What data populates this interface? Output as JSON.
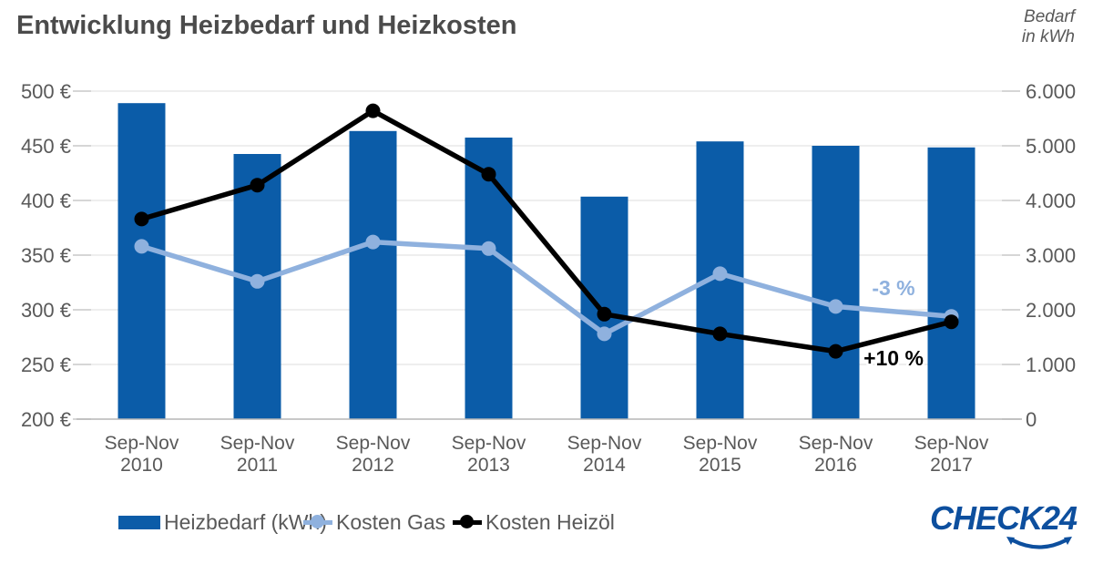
{
  "title": "Entwicklung Heizbedarf und Heizkosten",
  "axis_note": {
    "line1": "Bedarf",
    "line2": "in kWh"
  },
  "chart_data": {
    "type": "combo",
    "title": "Entwicklung Heizbedarf und Heizkosten",
    "grid": true,
    "legend_position": "bottom",
    "categories": [
      {
        "line1": "Sep-Nov",
        "line2": "2010"
      },
      {
        "line1": "Sep-Nov",
        "line2": "2011"
      },
      {
        "line1": "Sep-Nov",
        "line2": "2012"
      },
      {
        "line1": "Sep-Nov",
        "line2": "2013"
      },
      {
        "line1": "Sep-Nov",
        "line2": "2014"
      },
      {
        "line1": "Sep-Nov",
        "line2": "2015"
      },
      {
        "line1": "Sep-Nov",
        "line2": "2016"
      },
      {
        "line1": "Sep-Nov",
        "line2": "2017"
      }
    ],
    "left_axis": {
      "unit": "EUR",
      "min": 200,
      "max": 500,
      "ticks": [
        {
          "value": 500,
          "label": "500 €"
        },
        {
          "value": 450,
          "label": "450 €"
        },
        {
          "value": 400,
          "label": "400 €"
        },
        {
          "value": 350,
          "label": "350 €"
        },
        {
          "value": 300,
          "label": "300 €"
        },
        {
          "value": 250,
          "label": "250 €"
        },
        {
          "value": 200,
          "label": "200 €"
        }
      ]
    },
    "right_axis": {
      "title": "Bedarf in kWh",
      "min": 0,
      "max": 6000,
      "ticks": [
        {
          "value": 6000,
          "label": "6.000"
        },
        {
          "value": 5000,
          "label": "5.000"
        },
        {
          "value": 4000,
          "label": "4.000"
        },
        {
          "value": 3000,
          "label": "3.000"
        },
        {
          "value": 2000,
          "label": "2.000"
        },
        {
          "value": 1000,
          "label": "1.000"
        },
        {
          "value": 0,
          "label": "0"
        }
      ]
    },
    "series": [
      {
        "name": "Heizbedarf (kWh)",
        "type": "bar",
        "axis": "right",
        "color": "#0b5ca8",
        "values": [
          5780,
          4850,
          5270,
          5150,
          4070,
          5080,
          5000,
          4970
        ]
      },
      {
        "name": "Kosten Gas",
        "type": "line",
        "axis": "left",
        "color": "#8fb1de",
        "values": [
          358,
          326,
          362,
          356,
          278,
          333,
          303,
          294
        ]
      },
      {
        "name": "Kosten Heizöl",
        "type": "line",
        "axis": "left",
        "color": "#000000",
        "values": [
          383,
          414,
          482,
          424,
          296,
          278,
          262,
          289
        ]
      }
    ],
    "annotations": [
      {
        "text": "-3 %",
        "x": 981,
        "y": 324,
        "color": "#8fb1de"
      },
      {
        "text": "+10 %",
        "x": 981,
        "y": 401,
        "color": "#000000"
      }
    ],
    "style": {
      "grid_color": "#dcdcdc",
      "tick_color": "#c9c9c9",
      "axis_color": "#b5b5b5",
      "text_color": "#595959"
    }
  },
  "logo": {
    "text": "CHECK24",
    "color": "#0d4f9e"
  }
}
